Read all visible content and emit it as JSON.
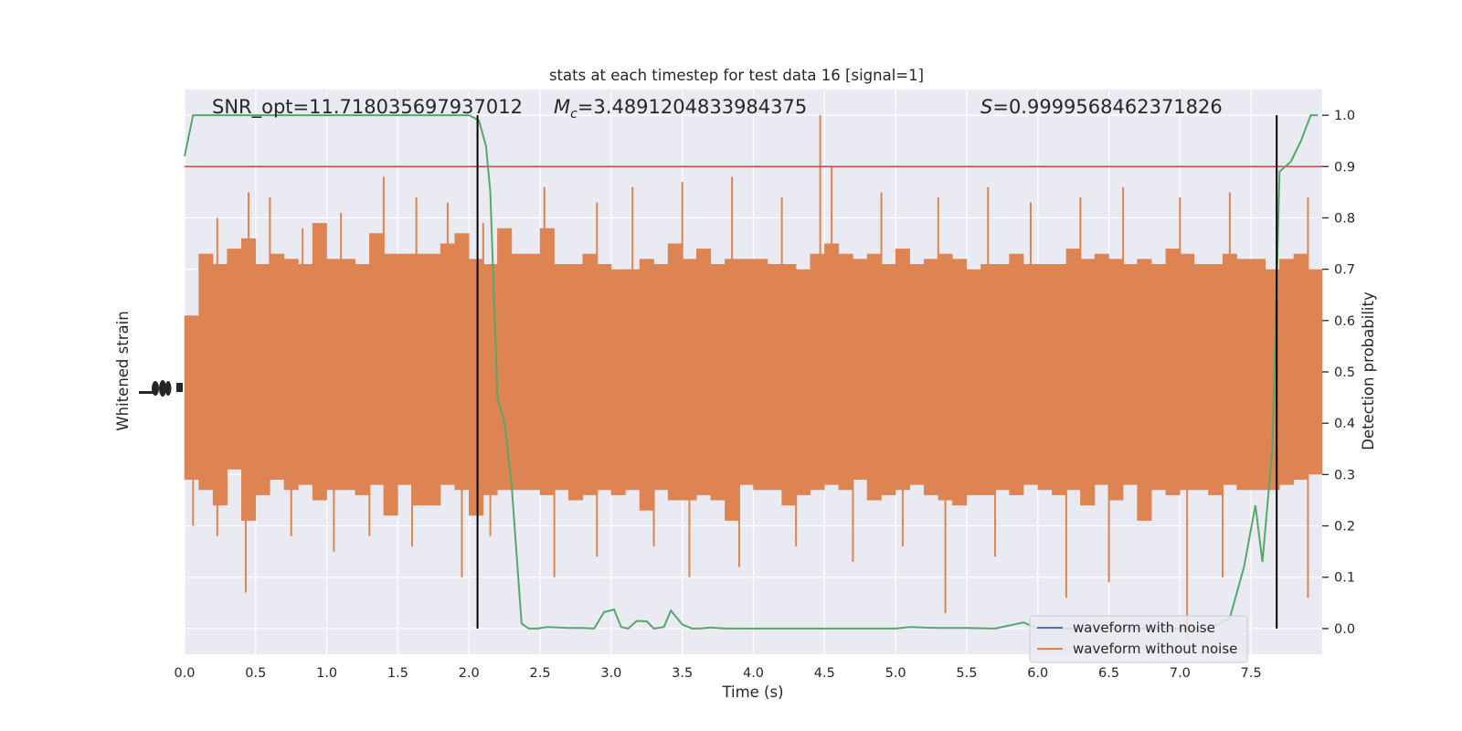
{
  "chart_data": {
    "type": "line",
    "title": "stats at each timestep for test data 16 [signal=1]",
    "xlabel": "Time (s)",
    "ylabel_left": "Whitened strain",
    "ylabel_right": "Detection probability",
    "xlim": [
      0.0,
      8.0
    ],
    "ylim_right": [
      -0.05,
      1.05
    ],
    "x_ticks": [
      0.0,
      0.5,
      1.0,
      1.5,
      2.0,
      2.5,
      3.0,
      3.5,
      4.0,
      4.5,
      5.0,
      5.5,
      6.0,
      6.5,
      7.0,
      7.5
    ],
    "x_tick_labels": [
      "0.0",
      "0.5",
      "1.0",
      "1.5",
      "2.0",
      "2.5",
      "3.0",
      "3.5",
      "4.0",
      "4.5",
      "5.0",
      "5.5",
      "6.0",
      "6.5",
      "7.0",
      "7.5"
    ],
    "y_ticks_right": [
      0.0,
      0.1,
      0.2,
      0.3,
      0.4,
      0.5,
      0.6,
      0.7,
      0.8,
      0.9,
      1.0
    ],
    "y_tick_labels_right": [
      "0.0",
      "0.1",
      "0.2",
      "0.3",
      "0.4",
      "0.5",
      "0.6",
      "0.7",
      "0.8",
      "0.9",
      "1.0"
    ],
    "grid": true,
    "legend_placement": "lower-right",
    "annotations": {
      "snr": "SNR_opt=11.718035697937012",
      "mc_symbol": "M",
      "mc_sub": "c",
      "mc_value": "=3.4891204833984375",
      "s_symbol": "S",
      "s_value": "=0.9999568462371826"
    },
    "series": [
      {
        "name": "waveform with noise",
        "color": "#4c72b0",
        "kind": "strain"
      },
      {
        "name": "waveform without noise",
        "color": "#dd8452",
        "kind": "strain",
        "envelope_upper": [
          0.61,
          0.73,
          0.71,
          0.74,
          0.76,
          0.71,
          0.73,
          0.72,
          0.71,
          0.79,
          0.72,
          0.72,
          0.71,
          0.77,
          0.73,
          0.73,
          0.73,
          0.73,
          0.75,
          0.77,
          0.72,
          0.71,
          0.78,
          0.73,
          0.73,
          0.78,
          0.71,
          0.71,
          0.73,
          0.71,
          0.7,
          0.7,
          0.72,
          0.71,
          0.75,
          0.72,
          0.74,
          0.71,
          0.72,
          0.72,
          0.72,
          0.71,
          0.71,
          0.7,
          0.73,
          0.75,
          0.73,
          0.72,
          0.73,
          0.71,
          0.74,
          0.71,
          0.72,
          0.73,
          0.72,
          0.7,
          0.71,
          0.71,
          0.73,
          0.71,
          0.71,
          0.71,
          0.74,
          0.72,
          0.73,
          0.72,
          0.71,
          0.72,
          0.71,
          0.74,
          0.73,
          0.71,
          0.71,
          0.73,
          0.72,
          0.72,
          0.7,
          0.72,
          0.73,
          0.7
        ],
        "envelope_lower": [
          0.29,
          0.27,
          0.24,
          0.31,
          0.21,
          0.26,
          0.29,
          0.27,
          0.28,
          0.25,
          0.27,
          0.27,
          0.26,
          0.28,
          0.22,
          0.28,
          0.24,
          0.24,
          0.28,
          0.27,
          0.22,
          0.26,
          0.27,
          0.27,
          0.27,
          0.26,
          0.27,
          0.25,
          0.26,
          0.27,
          0.26,
          0.27,
          0.23,
          0.27,
          0.25,
          0.25,
          0.26,
          0.25,
          0.21,
          0.28,
          0.27,
          0.27,
          0.24,
          0.26,
          0.27,
          0.28,
          0.27,
          0.29,
          0.25,
          0.26,
          0.27,
          0.28,
          0.26,
          0.25,
          0.24,
          0.26,
          0.26,
          0.27,
          0.26,
          0.28,
          0.27,
          0.26,
          0.27,
          0.24,
          0.28,
          0.25,
          0.28,
          0.21,
          0.27,
          0.26,
          0.27,
          0.27,
          0.26,
          0.28,
          0.27,
          0.27,
          0.27,
          0.28,
          0.29,
          0.3
        ],
        "peaks": [
          {
            "x": 0.23,
            "y": 0.8
          },
          {
            "x": 0.45,
            "y": 0.85
          },
          {
            "x": 0.6,
            "y": 0.84
          },
          {
            "x": 0.83,
            "y": 0.78
          },
          {
            "x": 1.1,
            "y": 0.81
          },
          {
            "x": 1.4,
            "y": 0.88
          },
          {
            "x": 1.63,
            "y": 0.84
          },
          {
            "x": 1.85,
            "y": 0.83
          },
          {
            "x": 2.1,
            "y": 0.79
          },
          {
            "x": 2.53,
            "y": 0.86
          },
          {
            "x": 2.9,
            "y": 0.83
          },
          {
            "x": 3.15,
            "y": 0.86
          },
          {
            "x": 3.5,
            "y": 0.87
          },
          {
            "x": 3.85,
            "y": 0.88
          },
          {
            "x": 4.2,
            "y": 0.84
          },
          {
            "x": 4.47,
            "y": 1.0
          },
          {
            "x": 4.55,
            "y": 0.9
          },
          {
            "x": 4.9,
            "y": 0.85
          },
          {
            "x": 5.3,
            "y": 0.84
          },
          {
            "x": 5.65,
            "y": 0.86
          },
          {
            "x": 5.95,
            "y": 0.83
          },
          {
            "x": 6.3,
            "y": 0.84
          },
          {
            "x": 6.6,
            "y": 0.86
          },
          {
            "x": 7.0,
            "y": 0.84
          },
          {
            "x": 7.35,
            "y": 0.85
          },
          {
            "x": 7.9,
            "y": 0.84
          }
        ],
        "troughs": [
          {
            "x": 0.06,
            "y": 0.2
          },
          {
            "x": 0.23,
            "y": 0.18
          },
          {
            "x": 0.43,
            "y": 0.07
          },
          {
            "x": 0.75,
            "y": 0.18
          },
          {
            "x": 1.05,
            "y": 0.15
          },
          {
            "x": 1.3,
            "y": 0.18
          },
          {
            "x": 1.6,
            "y": 0.16
          },
          {
            "x": 1.95,
            "y": 0.1
          },
          {
            "x": 2.15,
            "y": 0.18
          },
          {
            "x": 2.6,
            "y": 0.1
          },
          {
            "x": 2.9,
            "y": 0.14
          },
          {
            "x": 3.3,
            "y": 0.16
          },
          {
            "x": 3.55,
            "y": 0.1
          },
          {
            "x": 3.9,
            "y": 0.12
          },
          {
            "x": 4.3,
            "y": 0.16
          },
          {
            "x": 4.7,
            "y": 0.13
          },
          {
            "x": 5.05,
            "y": 0.16
          },
          {
            "x": 5.35,
            "y": 0.03
          },
          {
            "x": 5.7,
            "y": 0.14
          },
          {
            "x": 6.2,
            "y": 0.06
          },
          {
            "x": 6.5,
            "y": 0.09
          },
          {
            "x": 7.05,
            "y": -0.02
          },
          {
            "x": 7.3,
            "y": 0.1
          },
          {
            "x": 7.9,
            "y": 0.06
          }
        ]
      },
      {
        "name": "",
        "color": "#55a868",
        "kind": "probability",
        "x": [
          0.0,
          0.06,
          0.12,
          0.2,
          0.3,
          0.4,
          0.5,
          0.7,
          0.9,
          1.1,
          1.3,
          1.5,
          1.7,
          1.9,
          2.0,
          2.07,
          2.12,
          2.15,
          2.2,
          2.25,
          2.3,
          2.37,
          2.42,
          2.48,
          2.55,
          2.63,
          2.7,
          2.8,
          2.88,
          2.95,
          3.02,
          3.07,
          3.12,
          3.18,
          3.25,
          3.3,
          3.37,
          3.42,
          3.5,
          3.57,
          3.62,
          3.7,
          3.8,
          3.9,
          4.0,
          4.2,
          4.5,
          5.0,
          5.1,
          5.3,
          5.5,
          5.7,
          5.9,
          6.0,
          6.2,
          6.5,
          7.0,
          7.2,
          7.35,
          7.45,
          7.53,
          7.58,
          7.65,
          7.7,
          7.78,
          7.85,
          7.92,
          7.97
        ],
        "y": [
          0.92,
          1.0,
          1.0,
          1.0,
          1.0,
          1.0,
          1.0,
          1.0,
          1.0,
          1.0,
          1.0,
          1.0,
          1.0,
          1.0,
          1.0,
          0.99,
          0.94,
          0.85,
          0.45,
          0.4,
          0.28,
          0.01,
          0.0,
          0.0,
          0.003,
          0.002,
          0.001,
          0.001,
          0.0,
          0.032,
          0.037,
          0.003,
          0.0,
          0.015,
          0.014,
          0.0,
          0.003,
          0.035,
          0.008,
          0.0,
          0.0,
          0.002,
          0.0,
          0.0,
          0.0,
          0.0,
          0.0,
          0.0,
          0.003,
          0.001,
          0.001,
          0.0,
          0.012,
          0.0,
          0.0,
          0.0,
          0.0,
          0.0,
          0.02,
          0.12,
          0.24,
          0.13,
          0.35,
          0.89,
          0.91,
          0.95,
          1.0,
          1.0
        ]
      }
    ],
    "threshold": {
      "y": 0.9,
      "color": "#c44e52"
    },
    "vertical_markers": [
      {
        "x": 2.06,
        "color": "#000000"
      },
      {
        "x": 7.68,
        "color": "#000000"
      }
    ],
    "background": "#eaeaf2",
    "grid_color": "#ffffff"
  }
}
